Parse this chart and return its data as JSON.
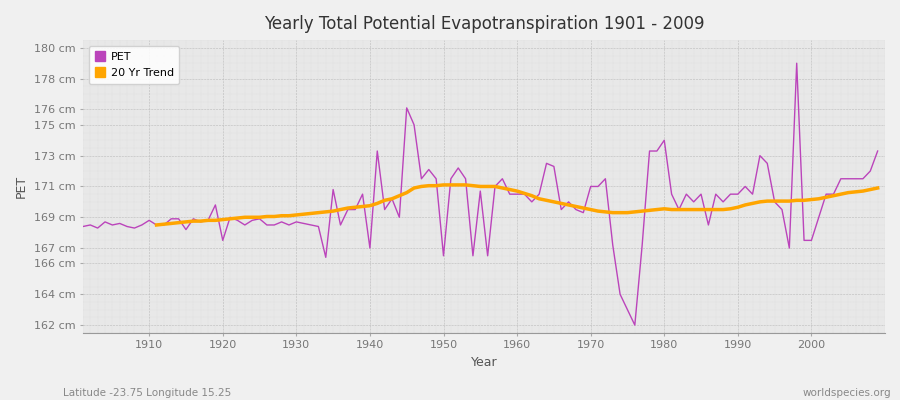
{
  "title": "Yearly Total Potential Evapotranspiration 1901 - 2009",
  "xlabel": "Year",
  "ylabel": "PET",
  "subtitle_left": "Latitude -23.75 Longitude 15.25",
  "subtitle_right": "worldspecies.org",
  "pet_color": "#BB44BB",
  "trend_color": "#FFA500",
  "bg_color": "#F0F0F0",
  "plot_bg_color": "#E8E8E8",
  "ylim": [
    161.5,
    180.5
  ],
  "yticks": [
    162,
    164,
    166,
    167,
    169,
    171,
    173,
    175,
    176,
    178,
    180
  ],
  "xlim": [
    1901,
    2010
  ],
  "xticks": [
    1910,
    1920,
    1930,
    1940,
    1950,
    1960,
    1970,
    1980,
    1990,
    2000
  ],
  "years": [
    1901,
    1902,
    1903,
    1904,
    1905,
    1906,
    1907,
    1908,
    1909,
    1910,
    1911,
    1912,
    1913,
    1914,
    1915,
    1916,
    1917,
    1918,
    1919,
    1920,
    1921,
    1922,
    1923,
    1924,
    1925,
    1926,
    1927,
    1928,
    1929,
    1930,
    1931,
    1932,
    1933,
    1934,
    1935,
    1936,
    1937,
    1938,
    1939,
    1940,
    1941,
    1942,
    1943,
    1944,
    1945,
    1946,
    1947,
    1948,
    1949,
    1950,
    1951,
    1952,
    1953,
    1954,
    1955,
    1956,
    1957,
    1958,
    1959,
    1960,
    1961,
    1962,
    1963,
    1964,
    1965,
    1966,
    1967,
    1968,
    1969,
    1970,
    1971,
    1972,
    1973,
    1974,
    1975,
    1976,
    1977,
    1978,
    1979,
    1980,
    1981,
    1982,
    1983,
    1984,
    1985,
    1986,
    1987,
    1988,
    1989,
    1990,
    1991,
    1992,
    1993,
    1994,
    1995,
    1996,
    1997,
    1998,
    1999,
    2000,
    2001,
    2002,
    2003,
    2004,
    2005,
    2006,
    2007,
    2008,
    2009
  ],
  "pet_values": [
    168.4,
    168.5,
    168.3,
    168.7,
    168.5,
    168.6,
    168.4,
    168.3,
    168.5,
    168.8,
    168.5,
    168.5,
    168.9,
    168.9,
    168.2,
    168.9,
    168.7,
    168.8,
    169.8,
    167.5,
    169.0,
    168.8,
    168.5,
    168.8,
    168.9,
    168.5,
    168.5,
    168.7,
    168.5,
    168.7,
    168.6,
    168.5,
    168.4,
    166.4,
    170.8,
    168.5,
    169.5,
    169.5,
    170.5,
    167.0,
    173.3,
    169.5,
    170.2,
    169.0,
    176.1,
    175.0,
    171.5,
    172.1,
    171.5,
    166.5,
    171.5,
    172.2,
    171.5,
    166.5,
    170.7,
    166.5,
    171.0,
    171.5,
    170.5,
    170.5,
    170.5,
    170.0,
    170.5,
    172.5,
    172.3,
    169.5,
    170.0,
    169.5,
    169.3,
    171.0,
    171.0,
    171.5,
    167.2,
    164.0,
    163.0,
    162.0,
    167.2,
    173.3,
    173.3,
    174.0,
    170.5,
    169.5,
    170.5,
    170.0,
    170.5,
    168.5,
    170.5,
    170.0,
    170.5,
    170.5,
    171.0,
    170.5,
    173.0,
    172.5,
    170.0,
    169.5,
    167.0,
    179.0,
    167.5,
    167.5,
    169.0,
    170.5,
    170.5,
    171.5,
    171.5,
    171.5,
    171.5,
    172.0,
    173.3
  ],
  "trend_values": [
    null,
    null,
    null,
    null,
    null,
    null,
    null,
    null,
    null,
    null,
    168.5,
    168.55,
    168.6,
    168.65,
    168.7,
    168.75,
    168.75,
    168.8,
    168.8,
    168.85,
    168.9,
    168.95,
    169.0,
    169.0,
    169.0,
    169.05,
    169.05,
    169.1,
    169.1,
    169.15,
    169.2,
    169.25,
    169.3,
    169.35,
    169.4,
    169.5,
    169.6,
    169.65,
    169.7,
    169.75,
    169.9,
    170.1,
    170.2,
    170.4,
    170.6,
    170.9,
    171.0,
    171.05,
    171.05,
    171.1,
    171.1,
    171.1,
    171.1,
    171.05,
    171.0,
    171.0,
    171.0,
    170.9,
    170.8,
    170.7,
    170.55,
    170.4,
    170.2,
    170.1,
    170.0,
    169.9,
    169.8,
    169.7,
    169.6,
    169.5,
    169.4,
    169.35,
    169.3,
    169.3,
    169.3,
    169.35,
    169.4,
    169.45,
    169.5,
    169.55,
    169.5,
    169.5,
    169.5,
    169.5,
    169.5,
    169.5,
    169.5,
    169.5,
    169.55,
    169.65,
    169.8,
    169.9,
    170.0,
    170.05,
    170.05,
    170.05,
    170.05,
    170.1,
    170.1,
    170.15,
    170.2,
    170.3,
    170.4,
    170.5,
    170.6,
    170.65,
    170.7,
    170.8,
    170.9
  ]
}
